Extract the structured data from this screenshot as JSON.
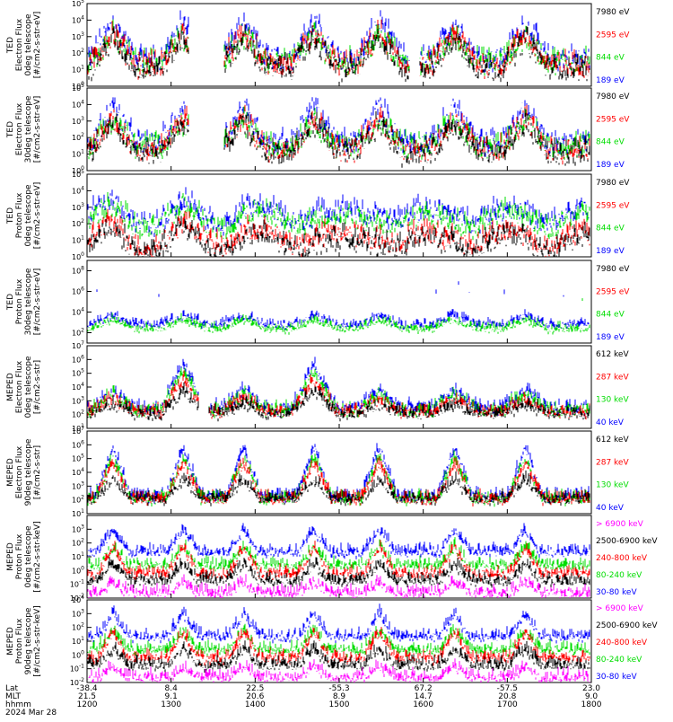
{
  "chart_data": {
    "type": "line",
    "date_label": "2024 Mar 28",
    "x_time_range": [
      "1200",
      "1800"
    ],
    "footer": {
      "rows": [
        {
          "label": "Lat",
          "values": [
            "-38.4",
            "8.4",
            "22.5",
            "-55.3",
            "67.2",
            "-57.5",
            "23.0"
          ]
        },
        {
          "label": "MLT",
          "values": [
            "21.5",
            "9.1",
            "20.6",
            "8.9",
            "14.7",
            "20.8",
            "9.0"
          ]
        },
        {
          "label": "hhmm",
          "values": [
            "1200",
            "1300",
            "1400",
            "1500",
            "1600",
            "1700",
            "1800"
          ]
        }
      ]
    },
    "panels": [
      {
        "id": "ted-e-0",
        "ylabel": [
          "TED",
          "Electron Flux",
          "0deg telescope",
          "[#/cm2-s-str-eV]"
        ],
        "ylim_exp": [
          0,
          5
        ],
        "yticks": [
          {
            "base": "10",
            "exp": "0"
          },
          {
            "base": "10",
            "exp": "1"
          },
          {
            "base": "10",
            "exp": "2"
          },
          {
            "base": "10",
            "exp": "3"
          },
          {
            "base": "10",
            "exp": "4"
          },
          {
            "base": "10",
            "exp": "5"
          }
        ],
        "legend": [
          {
            "name": "7980 eV",
            "color": "#000000"
          },
          {
            "name": "2595 eV",
            "color": "#ff0000"
          },
          {
            "name": "844 eV",
            "color": "#00dd00"
          },
          {
            "name": "189 eV",
            "color": "#0000ff"
          }
        ],
        "profile": "ted_e0"
      },
      {
        "id": "ted-e-30",
        "ylabel": [
          "TED",
          "Electron Flux",
          "30deg telescope",
          "[#/cm2-s-str-eV]"
        ],
        "ylim_exp": [
          0,
          5
        ],
        "yticks": [
          {
            "base": "10",
            "exp": "0"
          },
          {
            "base": "10",
            "exp": "1"
          },
          {
            "base": "10",
            "exp": "2"
          },
          {
            "base": "10",
            "exp": "3"
          },
          {
            "base": "10",
            "exp": "4"
          },
          {
            "base": "10",
            "exp": "5"
          }
        ],
        "legend": [
          {
            "name": "7980 eV",
            "color": "#000000"
          },
          {
            "name": "2595 eV",
            "color": "#ff0000"
          },
          {
            "name": "844 eV",
            "color": "#00dd00"
          },
          {
            "name": "189 eV",
            "color": "#0000ff"
          }
        ],
        "profile": "ted_e30"
      },
      {
        "id": "ted-p-0",
        "ylabel": [
          "TED",
          "Proton Flux",
          "0deg telescope",
          "[#/cm2-s-str-eV]"
        ],
        "ylim_exp": [
          0,
          5
        ],
        "yticks": [
          {
            "base": "10",
            "exp": "0"
          },
          {
            "base": "10",
            "exp": "1"
          },
          {
            "base": "10",
            "exp": "2"
          },
          {
            "base": "10",
            "exp": "3"
          },
          {
            "base": "10",
            "exp": "4"
          },
          {
            "base": "10",
            "exp": "5"
          }
        ],
        "legend": [
          {
            "name": "7980 eV",
            "color": "#000000"
          },
          {
            "name": "2595 eV",
            "color": "#ff0000"
          },
          {
            "name": "844 eV",
            "color": "#00dd00"
          },
          {
            "name": "189 eV",
            "color": "#0000ff"
          }
        ],
        "profile": "ted_p0"
      },
      {
        "id": "ted-p-30",
        "ylabel": [
          "TED",
          "Proton Flux",
          "30deg telescope",
          "[#/cm2-s-str-eV]"
        ],
        "ylim_exp": [
          1,
          9
        ],
        "yticks": [
          {
            "base": "10",
            "exp": "2"
          },
          {
            "base": "10",
            "exp": "4"
          },
          {
            "base": "10",
            "exp": "6"
          },
          {
            "base": "10",
            "exp": "8"
          }
        ],
        "legend": [
          {
            "name": "7980 eV",
            "color": "#000000"
          },
          {
            "name": "2595 eV",
            "color": "#ff0000"
          },
          {
            "name": "844 eV",
            "color": "#00dd00"
          },
          {
            "name": "189 eV",
            "color": "#0000ff"
          }
        ],
        "profile": "ted_p30"
      },
      {
        "id": "meped-e-0",
        "ylabel": [
          "MEPED",
          "Electron Flux",
          "0deg telescope",
          "[#/cm2-s-str]"
        ],
        "ylim_exp": [
          1,
          7
        ],
        "yticks": [
          {
            "base": "10",
            "exp": "1"
          },
          {
            "base": "10",
            "exp": "2"
          },
          {
            "base": "10",
            "exp": "3"
          },
          {
            "base": "10",
            "exp": "4"
          },
          {
            "base": "10",
            "exp": "5"
          },
          {
            "base": "10",
            "exp": "6"
          },
          {
            "base": "10",
            "exp": "7"
          }
        ],
        "legend": [
          {
            "name": "612 keV",
            "color": "#000000"
          },
          {
            "name": "287 keV",
            "color": "#ff0000"
          },
          {
            "name": "130 keV",
            "color": "#00dd00"
          },
          {
            "name": "40 keV",
            "color": "#0000ff"
          }
        ],
        "profile": "meped_e0"
      },
      {
        "id": "meped-e-90",
        "ylabel": [
          "MEPED",
          "Electron Flux",
          "90deg telescope",
          "[#/cm2-s-str]"
        ],
        "ylim_exp": [
          1,
          7
        ],
        "yticks": [
          {
            "base": "10",
            "exp": "1"
          },
          {
            "base": "10",
            "exp": "2"
          },
          {
            "base": "10",
            "exp": "3"
          },
          {
            "base": "10",
            "exp": "4"
          },
          {
            "base": "10",
            "exp": "5"
          },
          {
            "base": "10",
            "exp": "6"
          },
          {
            "base": "10",
            "exp": "7"
          }
        ],
        "legend": [
          {
            "name": "612 keV",
            "color": "#000000"
          },
          {
            "name": "287 keV",
            "color": "#ff0000"
          },
          {
            "name": "130 keV",
            "color": "#00dd00"
          },
          {
            "name": "40 keV",
            "color": "#0000ff"
          }
        ],
        "profile": "meped_e90"
      },
      {
        "id": "meped-p-0",
        "ylabel": [
          "MEPED",
          "Proton Flux",
          "0deg telescope",
          "[#/cm2-s-str-keV]"
        ],
        "ylim_exp": [
          -2,
          4
        ],
        "yticks": [
          {
            "base": "10",
            "exp": "-2"
          },
          {
            "base": "10",
            "exp": "-1"
          },
          {
            "base": "10",
            "exp": "0"
          },
          {
            "base": "10",
            "exp": "1"
          },
          {
            "base": "10",
            "exp": "2"
          },
          {
            "base": "10",
            "exp": "3"
          }
        ],
        "legend": [
          {
            "name": "> 6900 keV",
            "color": "#ff00ff"
          },
          {
            "name": "2500-6900 keV",
            "color": "#000000"
          },
          {
            "name": "240-800 keV",
            "color": "#ff0000"
          },
          {
            "name": "80-240 keV",
            "color": "#00dd00"
          },
          {
            "name": "30-80 keV",
            "color": "#0000ff"
          }
        ],
        "profile": "meped_p0"
      },
      {
        "id": "meped-p-90",
        "ylabel": [
          "MEPED",
          "Proton Flux",
          "90deg telescope",
          "[#/cm2-s-str-keV]"
        ],
        "ylim_exp": [
          -2,
          4
        ],
        "yticks": [
          {
            "base": "10",
            "exp": "-2"
          },
          {
            "base": "10",
            "exp": "-1"
          },
          {
            "base": "10",
            "exp": "0"
          },
          {
            "base": "10",
            "exp": "1"
          },
          {
            "base": "10",
            "exp": "2"
          },
          {
            "base": "10",
            "exp": "3"
          },
          {
            "base": "10",
            "exp": "4"
          }
        ],
        "legend": [
          {
            "name": "> 6900 keV",
            "color": "#ff00ff"
          },
          {
            "name": "2500-6900 keV",
            "color": "#000000"
          },
          {
            "name": "240-800 keV",
            "color": "#ff0000"
          },
          {
            "name": "80-240 keV",
            "color": "#00dd00"
          },
          {
            "name": "30-80 keV",
            "color": "#0000ff"
          }
        ],
        "profile": "meped_p90"
      }
    ]
  }
}
